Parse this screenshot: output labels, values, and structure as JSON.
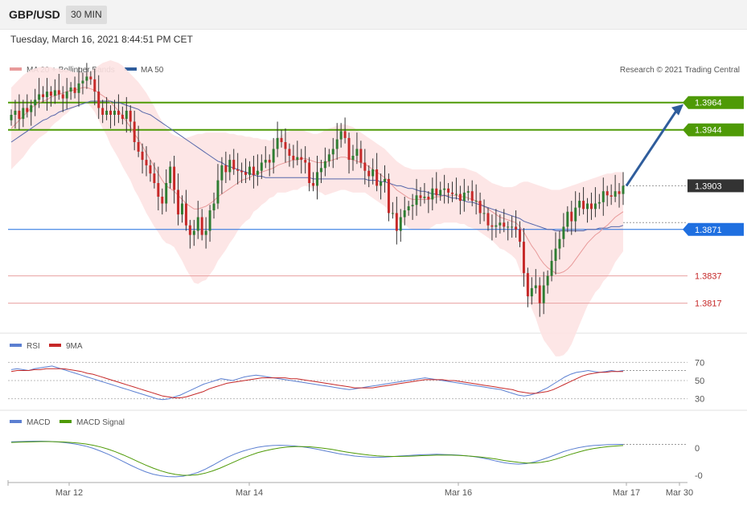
{
  "header": {
    "symbol": "GBP/USD",
    "interval": "30 MIN",
    "datetime": "Tuesday, March 16, 2021 8:44:51 PM CET"
  },
  "legend": {
    "ma20": "MA 20 + Bollinger Bands",
    "ma50": "MA 50",
    "credit": "Research © 2021 Trading Central",
    "rsi": "RSI",
    "rsi_ma": "9MA",
    "macd": "MACD",
    "macd_signal": "MACD Signal"
  },
  "colors": {
    "bull": "#2e7d32",
    "bear": "#c62828",
    "band": "#fde3e3",
    "ma20": "#e89a9a",
    "ma50": "#5566aa",
    "resistance": "#4e9a06",
    "pivot": "#1f6fe0",
    "support": "#c62828",
    "last": "#333333",
    "arrow": "#2f5d9c",
    "rsi": "#5b7fd1",
    "rsi_ma": "#c62828",
    "macd": "#5b7fd1",
    "macd_signal": "#4e9a06"
  },
  "chart_data": [
    {
      "type": "candlestick",
      "ylim": [
        1.3795,
        1.3995
      ],
      "x_ticks": [
        "Mar 12",
        "Mar 14",
        "Mar 16",
        "Mar 17",
        "Mar 30"
      ],
      "levels": [
        {
          "value": 1.3964,
          "label": "1.3964",
          "kind": "resistance"
        },
        {
          "value": 1.3944,
          "label": "1.3944",
          "kind": "resistance"
        },
        {
          "value": 1.3903,
          "label": "1.3903",
          "kind": "last"
        },
        {
          "value": 1.3871,
          "label": "1.3871",
          "kind": "pivot"
        },
        {
          "value": 1.3837,
          "label": "1.3837",
          "kind": "support"
        },
        {
          "value": 1.3817,
          "label": "1.3817",
          "kind": "support"
        }
      ],
      "close_series": [
        1.3955,
        1.3958,
        1.3952,
        1.396,
        1.3957,
        1.3962,
        1.3966,
        1.397,
        1.3968,
        1.3972,
        1.3969,
        1.3973,
        1.397,
        1.3967,
        1.3972,
        1.3975,
        1.3971,
        1.3978,
        1.398,
        1.3983,
        1.3981,
        1.3972,
        1.396,
        1.3955,
        1.3958,
        1.3955,
        1.3958,
        1.3955,
        1.3952,
        1.3958,
        1.395,
        1.3935,
        1.3928,
        1.3922,
        1.3918,
        1.3912,
        1.3905,
        1.3895,
        1.389,
        1.3905,
        1.3917,
        1.39,
        1.3882,
        1.389,
        1.3874,
        1.3867,
        1.387,
        1.388,
        1.3867,
        1.387,
        1.3885,
        1.389,
        1.3907,
        1.3918,
        1.3913,
        1.3922,
        1.3915,
        1.3914,
        1.3913,
        1.3911,
        1.3917,
        1.3911,
        1.3914,
        1.392,
        1.3922,
        1.392,
        1.393,
        1.3938,
        1.3935,
        1.393,
        1.3925,
        1.3922,
        1.3924,
        1.3922,
        1.392,
        1.3905,
        1.3903,
        1.3913,
        1.3916,
        1.3921,
        1.3926,
        1.393,
        1.3937,
        1.3943,
        1.3938,
        1.3922,
        1.3925,
        1.393,
        1.392,
        1.3914,
        1.391,
        1.3915,
        1.3903,
        1.3906,
        1.3908,
        1.3883,
        1.3883,
        1.387,
        1.388,
        1.3885,
        1.3888,
        1.3889,
        1.3896,
        1.3894,
        1.3895,
        1.3893,
        1.3901,
        1.3896,
        1.39,
        1.3901,
        1.3898,
        1.3897,
        1.3897,
        1.3892,
        1.3898,
        1.3899,
        1.3892,
        1.3892,
        1.3883,
        1.3883,
        1.3874,
        1.3873,
        1.3874,
        1.3876,
        1.3873,
        1.3873,
        1.3873,
        1.3871,
        1.3862,
        1.3839,
        1.3822,
        1.3828,
        1.383,
        1.3817,
        1.383,
        1.3837,
        1.3848,
        1.3857,
        1.3864,
        1.3873,
        1.3884,
        1.3877,
        1.3887,
        1.3892,
        1.3886,
        1.389,
        1.3886,
        1.389,
        1.3891,
        1.3899,
        1.3896,
        1.3895,
        1.3899,
        1.3897,
        1.3903
      ],
      "ma20_series": [
        1.3945,
        1.3948,
        1.3951,
        1.3954,
        1.3957,
        1.396,
        1.3962,
        1.3964,
        1.3965,
        1.3966,
        1.3968,
        1.3969,
        1.397,
        1.3971,
        1.3972,
        1.3973,
        1.3973,
        1.3974,
        1.3975,
        1.3975,
        1.3974,
        1.3973,
        1.3971,
        1.3969,
        1.3967,
        1.3964,
        1.3961,
        1.3958,
        1.3954,
        1.395,
        1.3946,
        1.3941,
        1.3937,
        1.3932,
        1.3927,
        1.3922,
        1.3917,
        1.3912,
        1.3907,
        1.3903,
        1.3901,
        1.3899,
        1.3896,
        1.3893,
        1.389,
        1.3888,
        1.3886,
        1.3886,
        1.3887,
        1.3888,
        1.389,
        1.3892,
        1.3895,
        1.3897,
        1.3899,
        1.3901,
        1.3903,
        1.3905,
        1.3907,
        1.3908,
        1.3909,
        1.3911,
        1.3912,
        1.3913,
        1.3914,
        1.3915,
        1.3916,
        1.3918,
        1.3919,
        1.392,
        1.3921,
        1.3922,
        1.3922,
        1.3923,
        1.3923,
        1.3922,
        1.3921,
        1.392,
        1.392,
        1.392,
        1.3921,
        1.3922,
        1.3923,
        1.3924,
        1.3924,
        1.3923,
        1.3922,
        1.3921,
        1.392,
        1.3919,
        1.3917,
        1.3915,
        1.3913,
        1.3911,
        1.3909,
        1.3906,
        1.3903,
        1.39,
        1.3898,
        1.3896,
        1.3894,
        1.3893,
        1.3893,
        1.3893,
        1.3893,
        1.3893,
        1.3894,
        1.3895,
        1.3895,
        1.3896,
        1.3896,
        1.3896,
        1.3896,
        1.3895,
        1.3895,
        1.3894,
        1.3893,
        1.3892,
        1.389,
        1.3888,
        1.3886,
        1.3884,
        1.3882,
        1.388,
        1.3879,
        1.3878,
        1.3877,
        1.3876,
        1.3873,
        1.3869,
        1.3864,
        1.3859,
        1.3855,
        1.385,
        1.3846,
        1.3843,
        1.3841,
        1.3839,
        1.3839,
        1.384,
        1.3842,
        1.3845,
        1.3849,
        1.3853,
        1.3857,
        1.3861,
        1.3864,
        1.3867,
        1.3869,
        1.3872,
        1.3874,
        1.3877,
        1.388,
        1.3882,
        1.3884
      ],
      "ma50_series": [
        1.3935,
        1.3937,
        1.3939,
        1.3941,
        1.3943,
        1.3945,
        1.3947,
        1.3949,
        1.3951,
        1.3952,
        1.3954,
        1.3955,
        1.3957,
        1.3958,
        1.3959,
        1.396,
        1.3961,
        1.3962,
        1.3963,
        1.3964,
        1.3965,
        1.3965,
        1.3965,
        1.3965,
        1.3965,
        1.3965,
        1.3964,
        1.3964,
        1.3963,
        1.3962,
        1.3961,
        1.396,
        1.3959,
        1.3957,
        1.3956,
        1.3955,
        1.3953,
        1.3951,
        1.3949,
        1.3947,
        1.3945,
        1.3943,
        1.3941,
        1.3939,
        1.3937,
        1.3935,
        1.3933,
        1.3931,
        1.3929,
        1.3927,
        1.3925,
        1.3923,
        1.3921,
        1.392,
        1.3918,
        1.3917,
        1.3916,
        1.3915,
        1.3914,
        1.3913,
        1.3912,
        1.3911,
        1.391,
        1.391,
        1.3909,
        1.3909,
        1.3909,
        1.3909,
        1.3909,
        1.3909,
        1.3909,
        1.3909,
        1.3909,
        1.3909,
        1.3909,
        1.3909,
        1.3908,
        1.3908,
        1.3908,
        1.3908,
        1.3908,
        1.3908,
        1.3908,
        1.3908,
        1.3908,
        1.3908,
        1.3908,
        1.3908,
        1.3908,
        1.3908,
        1.3907,
        1.3907,
        1.3907,
        1.3906,
        1.3906,
        1.3905,
        1.3904,
        1.3903,
        1.3903,
        1.3902,
        1.3901,
        1.3901,
        1.39,
        1.3899,
        1.3899,
        1.3898,
        1.3897,
        1.3897,
        1.3896,
        1.3896,
        1.3895,
        1.3894,
        1.3894,
        1.3893,
        1.3892,
        1.3891,
        1.3891,
        1.389,
        1.3889,
        1.3888,
        1.3887,
        1.3886,
        1.3885,
        1.3884,
        1.3883,
        1.3882,
        1.3881,
        1.388,
        1.3879,
        1.3877,
        1.3876,
        1.3875,
        1.3874,
        1.3873,
        1.3872,
        1.3871,
        1.3871,
        1.387,
        1.387,
        1.387,
        1.387,
        1.387,
        1.387,
        1.387,
        1.387,
        1.3871,
        1.3871,
        1.3871,
        1.3872,
        1.3872,
        1.3872,
        1.3873,
        1.3873,
        1.3873,
        1.3874
      ],
      "band_upper": [
        1.3975,
        1.3978,
        1.3981,
        1.3984,
        1.3986,
        1.3988,
        1.3989,
        1.399,
        1.399,
        1.399,
        1.399,
        1.3989,
        1.3989,
        1.3988,
        1.3988,
        1.3987,
        1.3986,
        1.3986,
        1.3986,
        1.3986,
        1.3987,
        1.3989,
        1.3991,
        1.3993,
        1.3994,
        1.3995,
        1.3994,
        1.3993,
        1.3991,
        1.3988,
        1.3985,
        1.3982,
        1.3979,
        1.3975,
        1.3971,
        1.3966,
        1.3961,
        1.3955,
        1.395,
        1.3945,
        1.3942,
        1.394,
        1.3939,
        1.3938,
        1.3938,
        1.3939,
        1.394,
        1.3941,
        1.3941,
        1.3942,
        1.3942,
        1.3942,
        1.3942,
        1.3942,
        1.3942,
        1.3941,
        1.3941,
        1.394,
        1.394,
        1.3939,
        1.3939,
        1.3938,
        1.3938,
        1.3937,
        1.3937,
        1.3936,
        1.3937,
        1.3938,
        1.394,
        1.3942,
        1.3943,
        1.3944,
        1.3944,
        1.3944,
        1.3943,
        1.3942,
        1.3941,
        1.3941,
        1.3942,
        1.3944,
        1.3945,
        1.3946,
        1.3947,
        1.3948,
        1.3948,
        1.3947,
        1.3946,
        1.3944,
        1.3942,
        1.394,
        1.3938,
        1.3936,
        1.3934,
        1.3932,
        1.393,
        1.3927,
        1.3924,
        1.3921,
        1.3919,
        1.3917,
        1.3916,
        1.3915,
        1.3915,
        1.3915,
        1.3915,
        1.3915,
        1.3915,
        1.3915,
        1.3915,
        1.3916,
        1.3916,
        1.3916,
        1.3916,
        1.3916,
        1.3916,
        1.3915,
        1.3914,
        1.3913,
        1.3911,
        1.3909,
        1.3907,
        1.3905,
        1.3904,
        1.3903,
        1.3902,
        1.3902,
        1.3902,
        1.3903,
        1.3905,
        1.3906,
        1.3906,
        1.3905,
        1.3904,
        1.3903,
        1.3902,
        1.3901,
        1.39,
        1.39,
        1.39,
        1.3901,
        1.3902,
        1.3903,
        1.3904,
        1.3905,
        1.3906,
        1.3907,
        1.3908,
        1.3909,
        1.391,
        1.3911,
        1.3912,
        1.3912,
        1.3913,
        1.3913,
        1.3913
      ],
      "band_lower": [
        1.3915,
        1.3918,
        1.3921,
        1.3924,
        1.3928,
        1.3932,
        1.3935,
        1.3938,
        1.394,
        1.3942,
        1.3946,
        1.3949,
        1.3951,
        1.3954,
        1.3956,
        1.3959,
        1.396,
        1.3962,
        1.3964,
        1.3964,
        1.3961,
        1.3957,
        1.3951,
        1.3945,
        1.394,
        1.3933,
        1.3928,
        1.3923,
        1.3917,
        1.3912,
        1.3907,
        1.39,
        1.3895,
        1.3889,
        1.3883,
        1.3878,
        1.3873,
        1.3869,
        1.3864,
        1.3861,
        1.386,
        1.3858,
        1.3853,
        1.3848,
        1.3842,
        1.3837,
        1.3832,
        1.3831,
        1.3833,
        1.3834,
        1.3838,
        1.3842,
        1.3848,
        1.3852,
        1.3856,
        1.3861,
        1.3865,
        1.387,
        1.3874,
        1.3877,
        1.3879,
        1.3884,
        1.3886,
        1.3889,
        1.3891,
        1.3894,
        1.3895,
        1.3898,
        1.3898,
        1.3898,
        1.3899,
        1.39,
        1.39,
        1.3902,
        1.3903,
        1.3902,
        1.3901,
        1.3899,
        1.3898,
        1.3896,
        1.3897,
        1.3898,
        1.3899,
        1.39,
        1.39,
        1.3899,
        1.3898,
        1.3898,
        1.3898,
        1.3898,
        1.3896,
        1.3894,
        1.3892,
        1.389,
        1.3888,
        1.3885,
        1.3882,
        1.3879,
        1.3877,
        1.3875,
        1.3872,
        1.3871,
        1.3871,
        1.3871,
        1.3871,
        1.3871,
        1.3873,
        1.3875,
        1.3875,
        1.3876,
        1.3876,
        1.3876,
        1.3876,
        1.3875,
        1.3875,
        1.3873,
        1.3872,
        1.3871,
        1.3869,
        1.3867,
        1.3865,
        1.3863,
        1.386,
        1.3857,
        1.3856,
        1.3854,
        1.3852,
        1.3849,
        1.3841,
        1.3832,
        1.3822,
        1.3813,
        1.3806,
        1.3797,
        1.379,
        1.3786,
        1.3782,
        1.3778,
        1.3778,
        1.3779,
        1.3782,
        1.3787,
        1.3794,
        1.3801,
        1.3808,
        1.3815,
        1.382,
        1.3825,
        1.3828,
        1.3833,
        1.3836,
        1.3841,
        1.3847,
        1.3851,
        1.3855
      ],
      "forecast_arrow": {
        "from": 1.3903,
        "to": 1.3964
      }
    },
    {
      "type": "line",
      "name": "RSI",
      "ylim": [
        20,
        80
      ],
      "y_ticks": [
        "70",
        "50",
        "30"
      ],
      "rsi_series": [
        62,
        63,
        62,
        61,
        63,
        64,
        65,
        66,
        64,
        62,
        60,
        58,
        56,
        54,
        52,
        50,
        48,
        46,
        44,
        42,
        40,
        38,
        36,
        34,
        32,
        30,
        29,
        30,
        32,
        34,
        37,
        40,
        43,
        46,
        48,
        50,
        52,
        51,
        50,
        52,
        54,
        55,
        56,
        55,
        54,
        53,
        52,
        51,
        50,
        49,
        48,
        47,
        46,
        45,
        44,
        43,
        42,
        41,
        40,
        41,
        42,
        43,
        44,
        45,
        46,
        47,
        48,
        49,
        50,
        51,
        52,
        53,
        52,
        51,
        50,
        49,
        48,
        47,
        46,
        45,
        44,
        43,
        42,
        41,
        40,
        38,
        36,
        34,
        33,
        34,
        36,
        39,
        42,
        46,
        50,
        54,
        57,
        59,
        60,
        61,
        60,
        59,
        60,
        61,
        60,
        61
      ],
      "ma_series": [
        60,
        61,
        61,
        61,
        62,
        62,
        63,
        63,
        63,
        63,
        62,
        61,
        60,
        58,
        57,
        55,
        53,
        51,
        49,
        47,
        45,
        43,
        41,
        39,
        37,
        35,
        33,
        32,
        31,
        31,
        32,
        34,
        36,
        38,
        41,
        43,
        45,
        47,
        48,
        49,
        50,
        51,
        52,
        53,
        53,
        53,
        53,
        53,
        52,
        52,
        51,
        50,
        49,
        48,
        47,
        46,
        45,
        44,
        43,
        42,
        42,
        42,
        42,
        43,
        44,
        45,
        46,
        47,
        48,
        49,
        50,
        51,
        51,
        51,
        51,
        50,
        50,
        49,
        48,
        47,
        46,
        45,
        44,
        43,
        42,
        41,
        40,
        38,
        37,
        36,
        36,
        37,
        38,
        40,
        43,
        46,
        49,
        52,
        55,
        57,
        58,
        59,
        59,
        60,
        60,
        60
      ]
    },
    {
      "type": "line",
      "name": "MACD",
      "ylim": [
        -1.2,
        1.0
      ],
      "y_ticks": [
        "0",
        "-0"
      ],
      "macd_series": [
        0.55,
        0.56,
        0.57,
        0.58,
        0.58,
        0.57,
        0.55,
        0.52,
        0.48,
        0.42,
        0.35,
        0.25,
        0.12,
        -0.02,
        -0.18,
        -0.35,
        -0.52,
        -0.68,
        -0.82,
        -0.93,
        -1.0,
        -1.04,
        -1.05,
        -1.02,
        -0.95,
        -0.85,
        -0.7,
        -0.52,
        -0.33,
        -0.15,
        0.0,
        0.12,
        0.22,
        0.3,
        0.35,
        0.38,
        0.39,
        0.38,
        0.36,
        0.32,
        0.27,
        0.21,
        0.14,
        0.07,
        0.0,
        -0.05,
        -0.1,
        -0.13,
        -0.15,
        -0.16,
        -0.15,
        -0.13,
        -0.1,
        -0.08,
        -0.06,
        -0.04,
        -0.03,
        -0.02,
        -0.03,
        -0.04,
        -0.06,
        -0.09,
        -0.13,
        -0.18,
        -0.25,
        -0.33,
        -0.4,
        -0.45,
        -0.47,
        -0.45,
        -0.38,
        -0.28,
        -0.16,
        -0.03,
        0.1,
        0.2,
        0.28,
        0.34,
        0.38,
        0.4,
        0.42,
        0.43,
        0.43
      ],
      "signal_series": [
        0.52,
        0.53,
        0.54,
        0.55,
        0.56,
        0.56,
        0.55,
        0.54,
        0.52,
        0.49,
        0.45,
        0.39,
        0.31,
        0.21,
        0.09,
        -0.05,
        -0.2,
        -0.36,
        -0.51,
        -0.65,
        -0.77,
        -0.87,
        -0.94,
        -0.98,
        -0.98,
        -0.95,
        -0.88,
        -0.78,
        -0.65,
        -0.5,
        -0.35,
        -0.2,
        -0.07,
        0.05,
        0.14,
        0.21,
        0.27,
        0.31,
        0.33,
        0.33,
        0.32,
        0.29,
        0.25,
        0.2,
        0.14,
        0.08,
        0.03,
        -0.02,
        -0.06,
        -0.09,
        -0.11,
        -0.12,
        -0.12,
        -0.11,
        -0.1,
        -0.08,
        -0.07,
        -0.06,
        -0.06,
        -0.06,
        -0.07,
        -0.09,
        -0.12,
        -0.15,
        -0.19,
        -0.24,
        -0.3,
        -0.35,
        -0.39,
        -0.42,
        -0.42,
        -0.39,
        -0.33,
        -0.24,
        -0.13,
        -0.02,
        0.08,
        0.17,
        0.24,
        0.29,
        0.33,
        0.36,
        0.38
      ]
    }
  ]
}
